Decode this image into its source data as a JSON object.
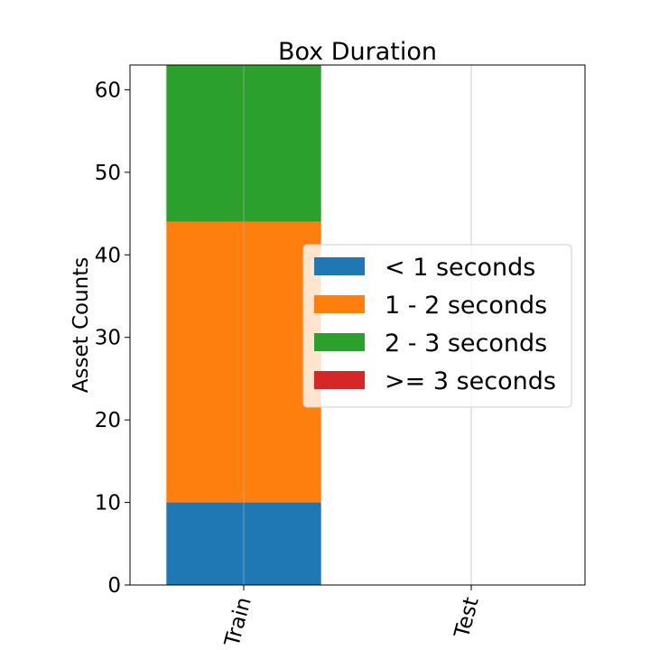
{
  "chart_data": {
    "type": "bar",
    "stacked": true,
    "title": "Box Duration",
    "xlabel": "",
    "ylabel": "Asset Counts",
    "categories": [
      "Train",
      "Test"
    ],
    "series": [
      {
        "name": "< 1 seconds",
        "values": [
          10,
          0
        ],
        "color": "#1f77b4"
      },
      {
        "name": "1 - 2 seconds",
        "values": [
          34,
          0
        ],
        "color": "#ff7f0e"
      },
      {
        "name": "2 - 3 seconds",
        "values": [
          19,
          0
        ],
        "color": "#2ca02c"
      },
      {
        "name": ">= 3 seconds",
        "values": [
          0,
          0
        ],
        "color": "#d62728"
      }
    ],
    "ylim": [
      0,
      63
    ],
    "yticks": [
      0,
      10,
      20,
      30,
      40,
      50,
      60
    ],
    "grid": "vertical",
    "legend_position": "center-right"
  }
}
